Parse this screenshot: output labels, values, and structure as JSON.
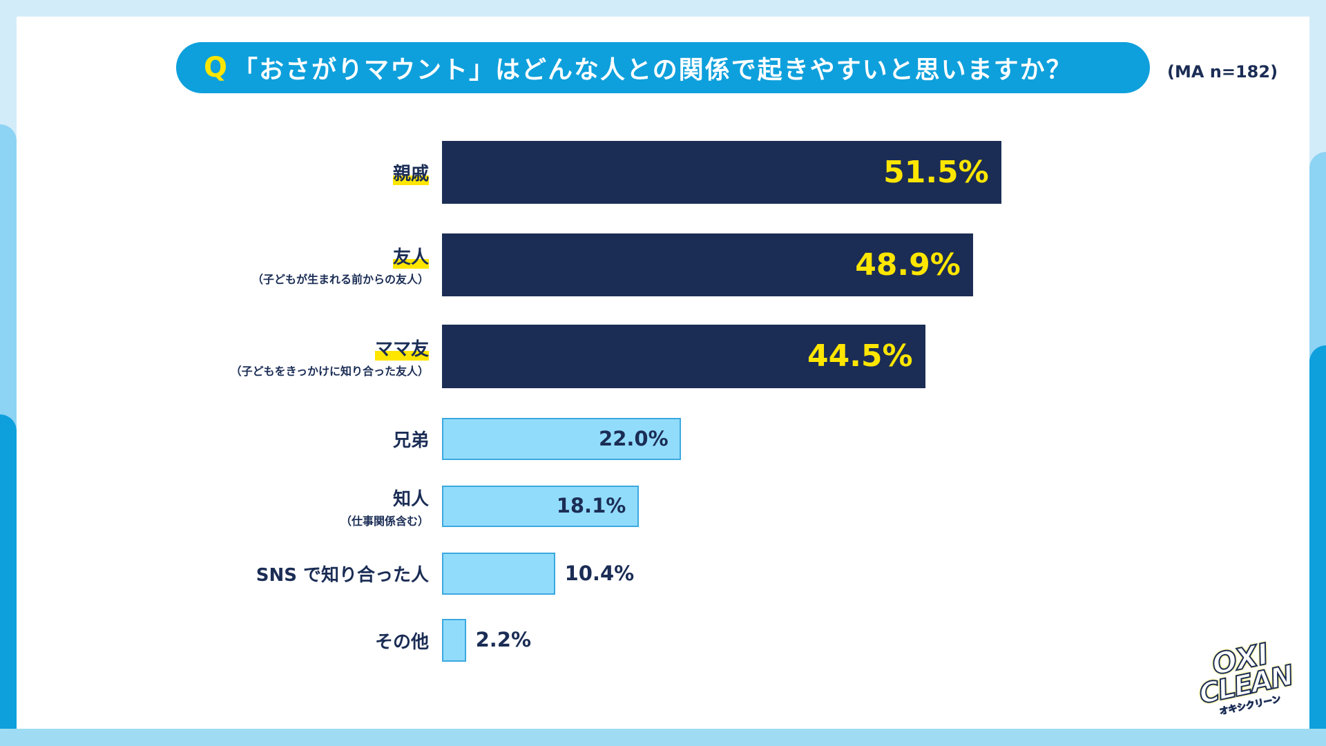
{
  "header": {
    "q_mark": "Q",
    "title": "「おさがりマウント」はどんな人との関係で起きやすいと思いますか？",
    "sample": "(MA n=182)"
  },
  "colors": {
    "highlight_bar": "#1b2d55",
    "highlight_text": "#ffe600",
    "normal_bar": "#92dcfb",
    "normal_border": "#3aa8e0",
    "title_bg": "#0ea0dc"
  },
  "chart_data": {
    "type": "bar",
    "orientation": "horizontal",
    "title": "「おさがりマウント」はどんな人との関係で起きやすいと思いますか？",
    "categories": [
      "親戚",
      "友人",
      "ママ友",
      "兄弟",
      "知人",
      "SNS で知り合った人",
      "その他"
    ],
    "sublabels": [
      "",
      "（子どもが生まれる前からの友人）",
      "（子どもをきっかけに知り合った友人）",
      "",
      "（仕事関係含む）",
      "",
      ""
    ],
    "values": [
      51.5,
      48.9,
      44.5,
      22.0,
      18.1,
      10.4,
      2.2
    ],
    "value_labels": [
      "51.5%",
      "48.9%",
      "44.5%",
      "22.0%",
      "18.1%",
      "10.4%",
      "2.2%"
    ],
    "highlighted": [
      true,
      true,
      true,
      false,
      false,
      false,
      false
    ],
    "unit": "%",
    "grid": false
  },
  "logo": {
    "line1": "OXI",
    "line2": "CLEAN",
    "line3": "オキシクリーン"
  }
}
